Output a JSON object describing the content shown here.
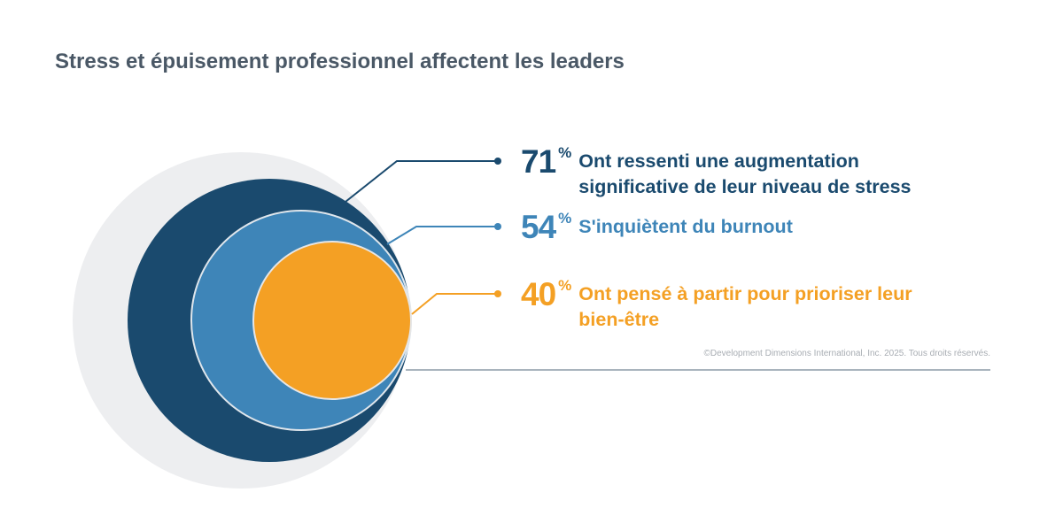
{
  "title": "Stress et épuisement professionnel affectent les leaders",
  "colors": {
    "outer": "#edeef0",
    "dark": "#1a4a6e",
    "mid": "#3e85b8",
    "orange": "#f4a024",
    "rule": "#a9b4bd"
  },
  "stats": [
    {
      "value": "71",
      "unit": "%",
      "label": "Ont ressenti une augmentation significative de leur niveau de stress"
    },
    {
      "value": "54",
      "unit": "%",
      "label": "S'inquiètent du burnout"
    },
    {
      "value": "40",
      "unit": "%",
      "label": "Ont pensé à partir pour prioriser leur bien-être"
    }
  ],
  "copyright": "©Development Dimensions International, Inc. 2025. Tous droits réservés."
}
